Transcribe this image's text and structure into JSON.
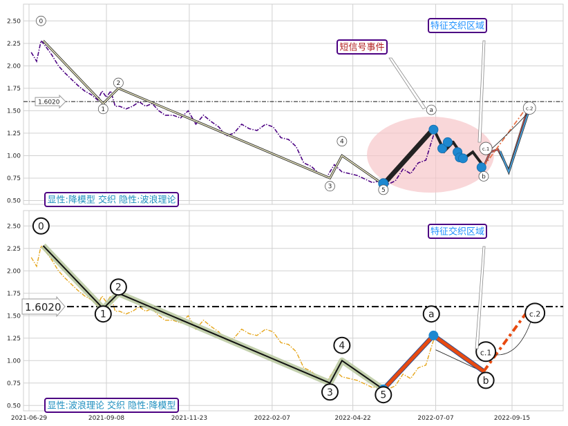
{
  "chart_data": [
    {
      "type": "line",
      "panel": "top",
      "ylim": [
        0.43,
        2.68
      ],
      "yticks": [
        "0.50",
        "0.75",
        "1.00",
        "1.25",
        "1.50",
        "1.75",
        "2.00",
        "2.25",
        "2.50"
      ],
      "ytick_values": [
        0.5,
        0.75,
        1.0,
        1.25,
        1.5,
        1.75,
        2.0,
        2.25,
        2.5
      ],
      "price_series": {
        "color": "#4b0082",
        "style": "dash-dot",
        "x": [
          "2021-07-01",
          "2021-07-06",
          "2021-07-10",
          "2021-07-14",
          "2021-07-20",
          "2021-07-26",
          "2021-08-01",
          "2021-08-07",
          "2021-08-13",
          "2021-08-19",
          "2021-08-25",
          "2021-08-31",
          "2021-09-04",
          "2021-09-08",
          "2021-09-12",
          "2021-09-16",
          "2021-09-20",
          "2021-09-26",
          "2021-10-02",
          "2021-10-08",
          "2021-10-14",
          "2021-10-20",
          "2021-10-26",
          "2021-11-01",
          "2021-11-08",
          "2021-11-15",
          "2021-11-22",
          "2021-11-29",
          "2021-12-06",
          "2021-12-13",
          "2021-12-20",
          "2021-12-27",
          "2022-01-03",
          "2022-01-10",
          "2022-01-17",
          "2022-01-24",
          "2022-02-01",
          "2022-02-08",
          "2022-02-15",
          "2022-02-22",
          "2022-03-01",
          "2022-03-08",
          "2022-03-15",
          "2022-03-22",
          "2022-03-29",
          "2022-04-05",
          "2022-04-12",
          "2022-04-19",
          "2022-04-26",
          "2022-05-03",
          "2022-05-10",
          "2022-05-17",
          "2022-05-24",
          "2022-05-31",
          "2022-06-07",
          "2022-06-14",
          "2022-06-21",
          "2022-06-28",
          "2022-07-03",
          "2022-07-07"
        ],
        "y": [
          2.15,
          2.05,
          2.28,
          2.22,
          2.12,
          2.0,
          1.92,
          1.85,
          1.78,
          1.72,
          1.68,
          1.62,
          1.72,
          1.65,
          1.72,
          1.55,
          1.55,
          1.52,
          1.55,
          1.6,
          1.55,
          1.58,
          1.5,
          1.45,
          1.45,
          1.42,
          1.5,
          1.35,
          1.45,
          1.38,
          1.32,
          1.22,
          1.25,
          1.35,
          1.3,
          1.28,
          1.35,
          1.32,
          1.2,
          1.18,
          1.1,
          0.92,
          0.88,
          0.8,
          0.76,
          0.9,
          0.82,
          0.8,
          0.78,
          0.74,
          0.7,
          0.72,
          0.68,
          0.72,
          0.85,
          0.8,
          0.92,
          0.95,
          1.15,
          1.3
        ]
      },
      "model_line": {
        "x": [
          "2021-07-12",
          "2021-09-05",
          "2021-09-19",
          "2022-04-01",
          "2022-04-12",
          "2022-05-20",
          "2022-07-05"
        ],
        "y": [
          2.28,
          1.58,
          1.75,
          0.75,
          1.0,
          0.68,
          1.3
        ]
      },
      "wave_labels": [
        {
          "label": "0",
          "x": "2021-07-10",
          "y": 2.5
        },
        {
          "label": "1",
          "x": "2021-09-05",
          "y": 1.52
        },
        {
          "label": "2",
          "x": "2021-09-19",
          "y": 1.81
        },
        {
          "label": "3",
          "x": "2022-04-01",
          "y": 0.66
        },
        {
          "label": "4",
          "x": "2022-04-12",
          "y": 1.16
        },
        {
          "label": "5",
          "x": "2022-05-20",
          "y": 0.62
        },
        {
          "label": "a",
          "x": "2022-07-03",
          "y": 1.51
        },
        {
          "label": "b",
          "x": "2022-08-20",
          "y": 0.77
        },
        {
          "label": "c.1",
          "x": "2022-08-22",
          "y": 1.08
        },
        {
          "label": "c.2",
          "x": "2022-10-01",
          "y": 1.53
        }
      ],
      "signal_segments": [
        {
          "x": [
            "2022-05-20",
            "2022-07-05"
          ],
          "y": [
            0.68,
            1.3
          ],
          "color": "#222222",
          "width": 7
        },
        {
          "x": [
            "2022-07-05",
            "2022-07-15",
            "2022-07-23"
          ],
          "y": [
            1.3,
            1.05,
            1.15
          ],
          "color": "#222222",
          "width": 4
        },
        {
          "x": [
            "2022-07-23",
            "2022-08-02",
            "2022-08-10",
            "2022-08-20"
          ],
          "y": [
            1.15,
            0.97,
            1.04,
            0.88
          ],
          "color": "#222222",
          "width": 4
        }
      ],
      "signal_points": {
        "x": [
          "2022-05-20",
          "2022-07-05",
          "2022-07-13",
          "2022-07-18",
          "2022-07-27",
          "2022-07-29",
          "2022-08-01",
          "2022-08-18"
        ],
        "y": [
          0.69,
          1.29,
          1.08,
          1.15,
          1.04,
          0.98,
          0.97,
          0.87
        ]
      },
      "projection_red": {
        "x": [
          "2022-08-20",
          "2022-08-26",
          "2022-09-02",
          "2022-09-12",
          "2022-10-01"
        ],
        "y": [
          0.88,
          1.04,
          1.07,
          0.84,
          1.58
        ]
      },
      "projection_orange": {
        "x": [
          "2022-08-20",
          "2022-10-01"
        ],
        "y": [
          0.88,
          1.58
        ]
      },
      "projection_blue": {
        "x": [
          "2022-09-04",
          "2022-09-12",
          "2022-10-01"
        ],
        "y": [
          1.05,
          0.82,
          1.52
        ]
      },
      "hline": {
        "y": 1.602,
        "label": "1.6020"
      },
      "annotations": [
        {
          "text": "短信号事件",
          "x": "2022-05-11",
          "y": 2.18,
          "color": "#b22222"
        },
        {
          "text": "特征交织区域",
          "x": "2022-08-08",
          "y": 2.42,
          "color": "#1e90ff"
        }
      ],
      "caption": "显性:降模型 交织 隐性:波浪理论"
    },
    {
      "type": "line",
      "panel": "bottom",
      "ylim": [
        0.43,
        2.68
      ],
      "yticks": [
        "0.50",
        "0.75",
        "1.00",
        "1.25",
        "1.50",
        "1.75",
        "2.00",
        "2.25",
        "2.50"
      ],
      "ytick_values": [
        0.5,
        0.75,
        1.0,
        1.25,
        1.5,
        1.75,
        2.0,
        2.25,
        2.5
      ],
      "xticks": [
        "2021-06-29",
        "2021-09-08",
        "2021-11-23",
        "2022-02-07",
        "2022-04-22",
        "2022-07-07",
        "2022-09-15"
      ],
      "price_series": {
        "color": "#e5a51a",
        "style": "dash-dot",
        "x": [
          "2021-07-01",
          "2021-07-06",
          "2021-07-10",
          "2021-07-14",
          "2021-07-20",
          "2021-07-26",
          "2021-08-01",
          "2021-08-07",
          "2021-08-13",
          "2021-08-19",
          "2021-08-25",
          "2021-08-31",
          "2021-09-04",
          "2021-09-08",
          "2021-09-12",
          "2021-09-16",
          "2021-09-20",
          "2021-09-26",
          "2021-10-02",
          "2021-10-08",
          "2021-10-14",
          "2021-10-20",
          "2021-10-26",
          "2021-11-01",
          "2021-11-08",
          "2021-11-15",
          "2021-11-22",
          "2021-11-29",
          "2021-12-06",
          "2021-12-13",
          "2021-12-20",
          "2021-12-27",
          "2022-01-03",
          "2022-01-10",
          "2022-01-17",
          "2022-01-24",
          "2022-02-01",
          "2022-02-08",
          "2022-02-15",
          "2022-02-22",
          "2022-03-01",
          "2022-03-08",
          "2022-03-15",
          "2022-03-22",
          "2022-03-29",
          "2022-04-05",
          "2022-04-12",
          "2022-04-19",
          "2022-04-26",
          "2022-05-03",
          "2022-05-10",
          "2022-05-17",
          "2022-05-24",
          "2022-05-31",
          "2022-06-07",
          "2022-06-14",
          "2022-06-21",
          "2022-06-28",
          "2022-07-03",
          "2022-07-07"
        ],
        "y": [
          2.15,
          2.05,
          2.28,
          2.22,
          2.12,
          2.0,
          1.92,
          1.85,
          1.78,
          1.72,
          1.68,
          1.62,
          1.72,
          1.65,
          1.72,
          1.55,
          1.55,
          1.52,
          1.55,
          1.6,
          1.55,
          1.58,
          1.5,
          1.45,
          1.45,
          1.42,
          1.5,
          1.35,
          1.45,
          1.38,
          1.32,
          1.22,
          1.25,
          1.35,
          1.3,
          1.28,
          1.35,
          1.32,
          1.2,
          1.18,
          1.1,
          0.92,
          0.88,
          0.8,
          0.76,
          0.9,
          0.82,
          0.8,
          0.78,
          0.74,
          0.7,
          0.72,
          0.68,
          0.72,
          0.85,
          0.8,
          0.92,
          0.95,
          1.15,
          1.3
        ]
      },
      "wave_line": {
        "x": [
          "2021-07-12",
          "2021-09-05",
          "2021-09-19",
          "2022-04-01",
          "2022-04-12",
          "2022-05-20"
        ],
        "y": [
          2.28,
          1.58,
          1.75,
          0.75,
          1.0,
          0.68
        ]
      },
      "abc_line": {
        "x": [
          "2022-05-20",
          "2022-07-05",
          "2022-08-20"
        ],
        "y": [
          0.68,
          1.28,
          0.88
        ]
      },
      "projection_dashed": {
        "x": [
          "2022-08-20",
          "2022-10-01"
        ],
        "y": [
          0.88,
          1.58
        ]
      },
      "wave_labels": [
        {
          "label": "0",
          "x": "2021-07-10",
          "y": 2.5
        },
        {
          "label": "1",
          "x": "2021-09-05",
          "y": 1.52
        },
        {
          "label": "2",
          "x": "2021-09-19",
          "y": 1.82
        },
        {
          "label": "3",
          "x": "2022-04-01",
          "y": 0.65
        },
        {
          "label": "4",
          "x": "2022-04-12",
          "y": 1.17
        },
        {
          "label": "5",
          "x": "2022-05-20",
          "y": 0.62
        },
        {
          "label": "a",
          "x": "2022-07-03",
          "y": 1.52
        },
        {
          "label": "b",
          "x": "2022-08-22",
          "y": 0.78
        },
        {
          "label": "c.1",
          "x": "2022-08-22",
          "y": 1.1
        },
        {
          "label": "c.2",
          "x": "2022-10-06",
          "y": 1.53
        }
      ],
      "hline": {
        "y": 1.602,
        "label": "1.6020"
      },
      "annotations": [
        {
          "text": "特征交织区域",
          "x": "2022-08-08",
          "y": 2.42,
          "color": "#1e90ff"
        }
      ],
      "caption": "显性:波浪理论 交织 隐性:降模型"
    }
  ],
  "colors": {
    "grid": "#d0d0d0",
    "box_border": "#4b0082",
    "caption_text": "#1f8fbf",
    "signal_blue": "#1e88d0",
    "ellipse": "#f6c6c9",
    "orange_red": "#e84a10"
  }
}
